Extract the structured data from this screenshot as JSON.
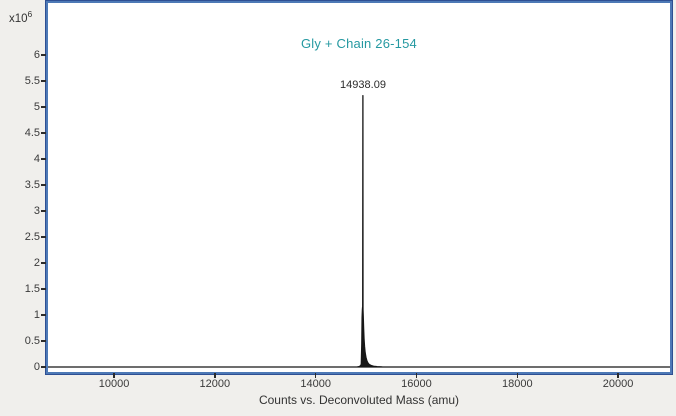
{
  "window": {
    "background": "#f0efec",
    "plot_border_color": "#4d79b6",
    "plot_background": "#ffffff"
  },
  "chart_data": {
    "type": "line",
    "subtype": "mass-spectrum",
    "title": "Gly + Chain 26-154",
    "title_color": "#2599a1",
    "xlabel": "Counts vs. Deconvoluted Mass (amu)",
    "ylabel": "",
    "y_unit": {
      "base": "x10",
      "exp": "6"
    },
    "x_ticks": [
      10000,
      12000,
      14000,
      16000,
      18000,
      20000
    ],
    "y_ticks": [
      0,
      0.5,
      1,
      1.5,
      2,
      2.5,
      3,
      3.5,
      4,
      4.5,
      5,
      5.5,
      6
    ],
    "xlim": [
      8690,
      21030
    ],
    "ylim": [
      0,
      7.0
    ],
    "grid": false,
    "legend": false,
    "peak": {
      "mass": 14938.09,
      "label": "14938.09",
      "intensity_e6": 5.22
    },
    "series": [
      {
        "name": "deconvoluted-mass-spectrum",
        "color": "#161616",
        "intensity_scale": "1e6",
        "points": [
          [
            8690,
            0
          ],
          [
            14820,
            0
          ],
          [
            14870,
            0.01
          ],
          [
            14895,
            0.03
          ],
          [
            14905,
            0.06
          ],
          [
            14915,
            0.45
          ],
          [
            14922,
            0.95
          ],
          [
            14928,
            1.1
          ],
          [
            14932,
            1.15
          ],
          [
            14934,
            1.15
          ],
          [
            14937,
            5.22
          ],
          [
            14940,
            1.1
          ],
          [
            14944,
            1.0
          ],
          [
            14952,
            0.75
          ],
          [
            14960,
            0.55
          ],
          [
            14970,
            0.4
          ],
          [
            14982,
            0.28
          ],
          [
            14996,
            0.19
          ],
          [
            15012,
            0.13
          ],
          [
            15032,
            0.085
          ],
          [
            15060,
            0.05
          ],
          [
            15100,
            0.028
          ],
          [
            15150,
            0.014
          ],
          [
            15220,
            0.006
          ],
          [
            15320,
            0.002
          ],
          [
            15480,
            0
          ],
          [
            21030,
            0
          ]
        ]
      }
    ]
  }
}
